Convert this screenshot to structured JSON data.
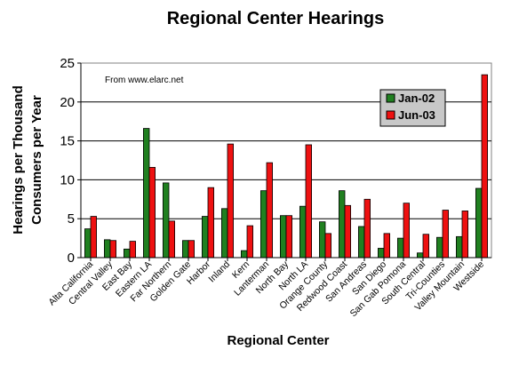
{
  "chart_data": {
    "type": "bar",
    "title": "Regional Center Hearings",
    "xlabel": "Regional Center",
    "ylabel_lines": [
      "Hearings per Thousand",
      "Consumers per Year"
    ],
    "annotation": "From www.elarc.net",
    "ylim": [
      0,
      25
    ],
    "yticks": [
      0,
      5,
      10,
      15,
      20,
      25
    ],
    "grid": "horizontal",
    "legend_position": "right",
    "categories": [
      "Alta California",
      "Central Valley",
      "East Bay",
      "Eastern LA",
      "Far Northern",
      "Golden Gate",
      "Harbor",
      "Inland",
      "Kern",
      "Lanterman",
      "North Bay",
      "North LA",
      "Orange County",
      "Redwood Coast",
      "San Andreas",
      "San Diego",
      "San Gab Pomona",
      "South Central",
      "Tri-Counties",
      "Valley Mountain",
      "Westside"
    ],
    "series": [
      {
        "name": "Jan-02",
        "color": "#208020",
        "values": [
          3.7,
          2.3,
          1.1,
          16.6,
          9.6,
          2.2,
          5.3,
          6.3,
          0.9,
          8.6,
          5.4,
          6.6,
          4.6,
          8.6,
          4.0,
          1.2,
          2.5,
          0.6,
          2.6,
          2.7,
          8.9
        ]
      },
      {
        "name": "Jun-03",
        "color": "#ee1111",
        "values": [
          5.3,
          2.2,
          2.1,
          11.6,
          4.7,
          2.2,
          9.0,
          14.6,
          4.1,
          12.2,
          5.4,
          14.5,
          3.1,
          6.7,
          7.5,
          3.1,
          7.0,
          3.0,
          6.1,
          6.0,
          23.5
        ]
      }
    ]
  }
}
